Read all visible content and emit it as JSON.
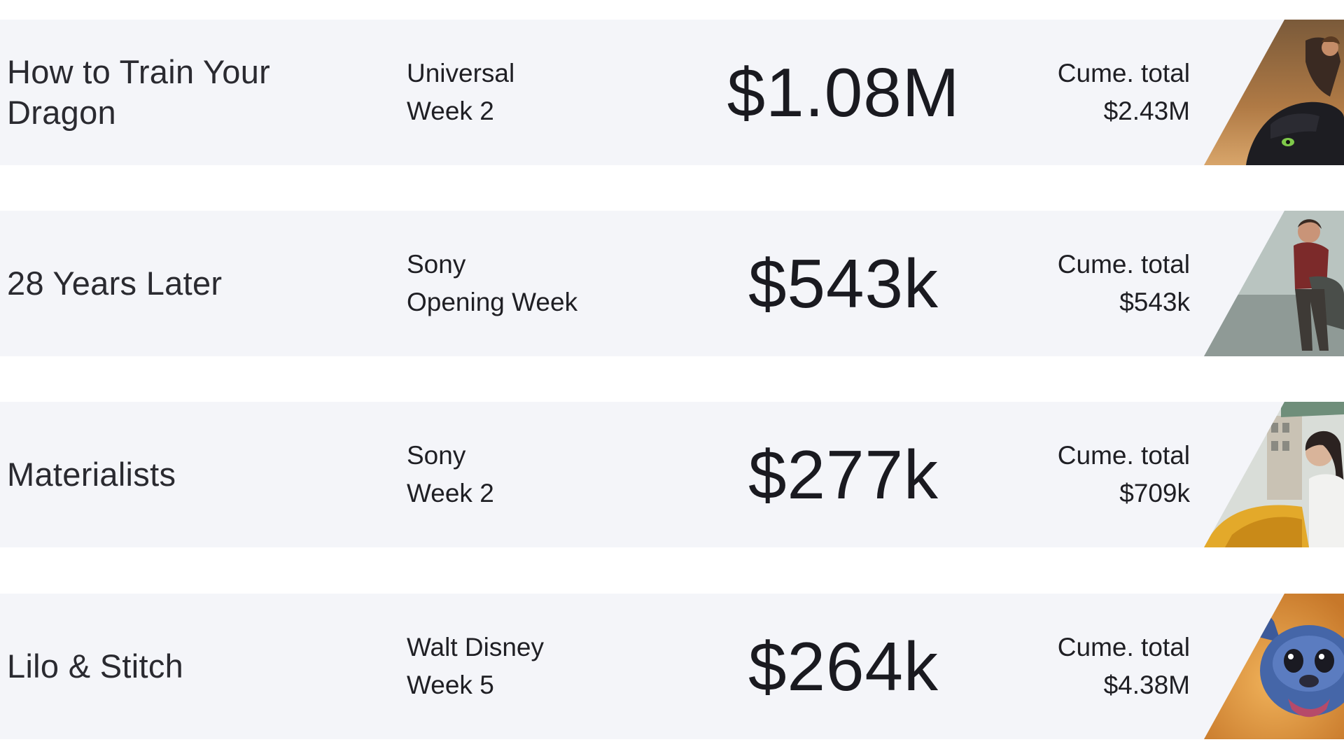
{
  "cume_label": "Cume. total",
  "rows": [
    {
      "title": "How to Train Your Dragon",
      "distributor": "Universal",
      "week": "Week 2",
      "gross": "$1.08M",
      "cume_total": "$2.43M",
      "poster_icon": "dragon-rider-image"
    },
    {
      "title": "28 Years Later",
      "distributor": "Sony",
      "week": "Opening Week",
      "gross": "$543k",
      "cume_total": "$543k",
      "poster_icon": "boy-climbing-image"
    },
    {
      "title": "Materialists",
      "distributor": "Sony",
      "week": "Week 2",
      "gross": "$277k",
      "cume_total": "$709k",
      "poster_icon": "woman-taxi-image"
    },
    {
      "title": "Lilo & Stitch",
      "distributor": "Walt Disney",
      "week": "Week 5",
      "gross": "$264k",
      "cume_total": "$4.38M",
      "poster_icon": "stitch-image"
    }
  ]
}
